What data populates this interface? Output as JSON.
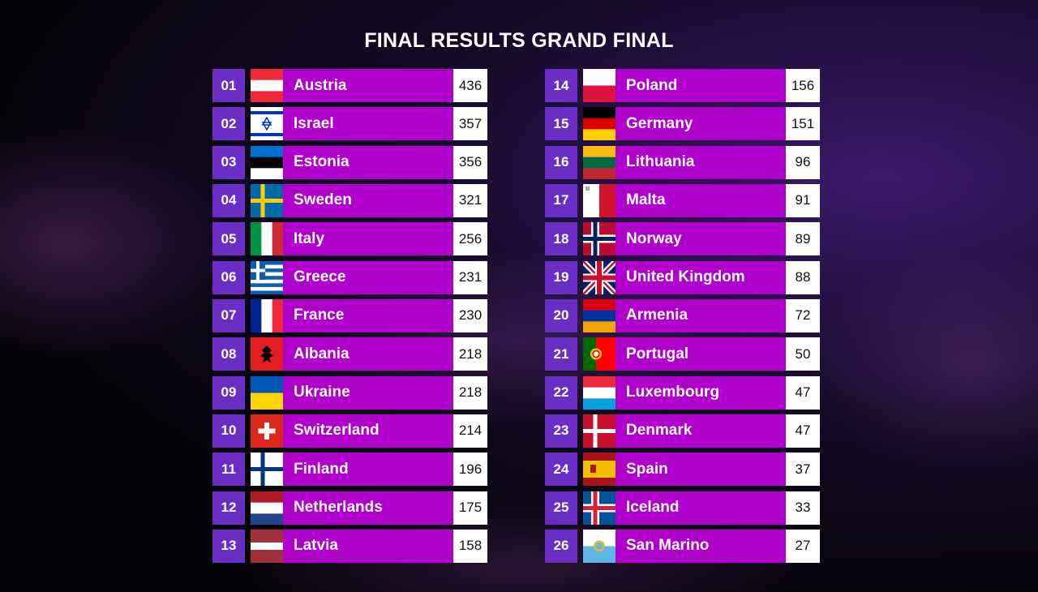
{
  "title": "FINAL RESULTS GRAND FINAL",
  "colors": {
    "rank_box": "#6a2ec4",
    "country_bar": "#b000cc",
    "score_box": "#ffffff"
  },
  "results": [
    {
      "rank": "01",
      "country": "Austria",
      "points": "436",
      "flag": "austria"
    },
    {
      "rank": "02",
      "country": "Israel",
      "points": "357",
      "flag": "israel"
    },
    {
      "rank": "03",
      "country": "Estonia",
      "points": "356",
      "flag": "estonia"
    },
    {
      "rank": "04",
      "country": "Sweden",
      "points": "321",
      "flag": "sweden"
    },
    {
      "rank": "05",
      "country": "Italy",
      "points": "256",
      "flag": "italy"
    },
    {
      "rank": "06",
      "country": "Greece",
      "points": "231",
      "flag": "greece"
    },
    {
      "rank": "07",
      "country": "France",
      "points": "230",
      "flag": "france"
    },
    {
      "rank": "08",
      "country": "Albania",
      "points": "218",
      "flag": "albania"
    },
    {
      "rank": "09",
      "country": "Ukraine",
      "points": "218",
      "flag": "ukraine"
    },
    {
      "rank": "10",
      "country": "Switzerland",
      "points": "214",
      "flag": "switzerland"
    },
    {
      "rank": "11",
      "country": "Finland",
      "points": "196",
      "flag": "finland"
    },
    {
      "rank": "12",
      "country": "Netherlands",
      "points": "175",
      "flag": "netherlands"
    },
    {
      "rank": "13",
      "country": "Latvia",
      "points": "158",
      "flag": "latvia"
    },
    {
      "rank": "14",
      "country": "Poland",
      "points": "156",
      "flag": "poland"
    },
    {
      "rank": "15",
      "country": "Germany",
      "points": "151",
      "flag": "germany"
    },
    {
      "rank": "16",
      "country": "Lithuania",
      "points": "96",
      "flag": "lithuania"
    },
    {
      "rank": "17",
      "country": "Malta",
      "points": "91",
      "flag": "malta"
    },
    {
      "rank": "18",
      "country": "Norway",
      "points": "89",
      "flag": "norway"
    },
    {
      "rank": "19",
      "country": "United Kingdom",
      "points": "88",
      "flag": "uk"
    },
    {
      "rank": "20",
      "country": "Armenia",
      "points": "72",
      "flag": "armenia"
    },
    {
      "rank": "21",
      "country": "Portugal",
      "points": "50",
      "flag": "portugal"
    },
    {
      "rank": "22",
      "country": "Luxembourg",
      "points": "47",
      "flag": "luxembourg"
    },
    {
      "rank": "23",
      "country": "Denmark",
      "points": "47",
      "flag": "denmark"
    },
    {
      "rank": "24",
      "country": "Spain",
      "points": "37",
      "flag": "spain"
    },
    {
      "rank": "25",
      "country": "Iceland",
      "points": "33",
      "flag": "iceland"
    },
    {
      "rank": "26",
      "country": "San Marino",
      "points": "27",
      "flag": "san-marino"
    }
  ]
}
